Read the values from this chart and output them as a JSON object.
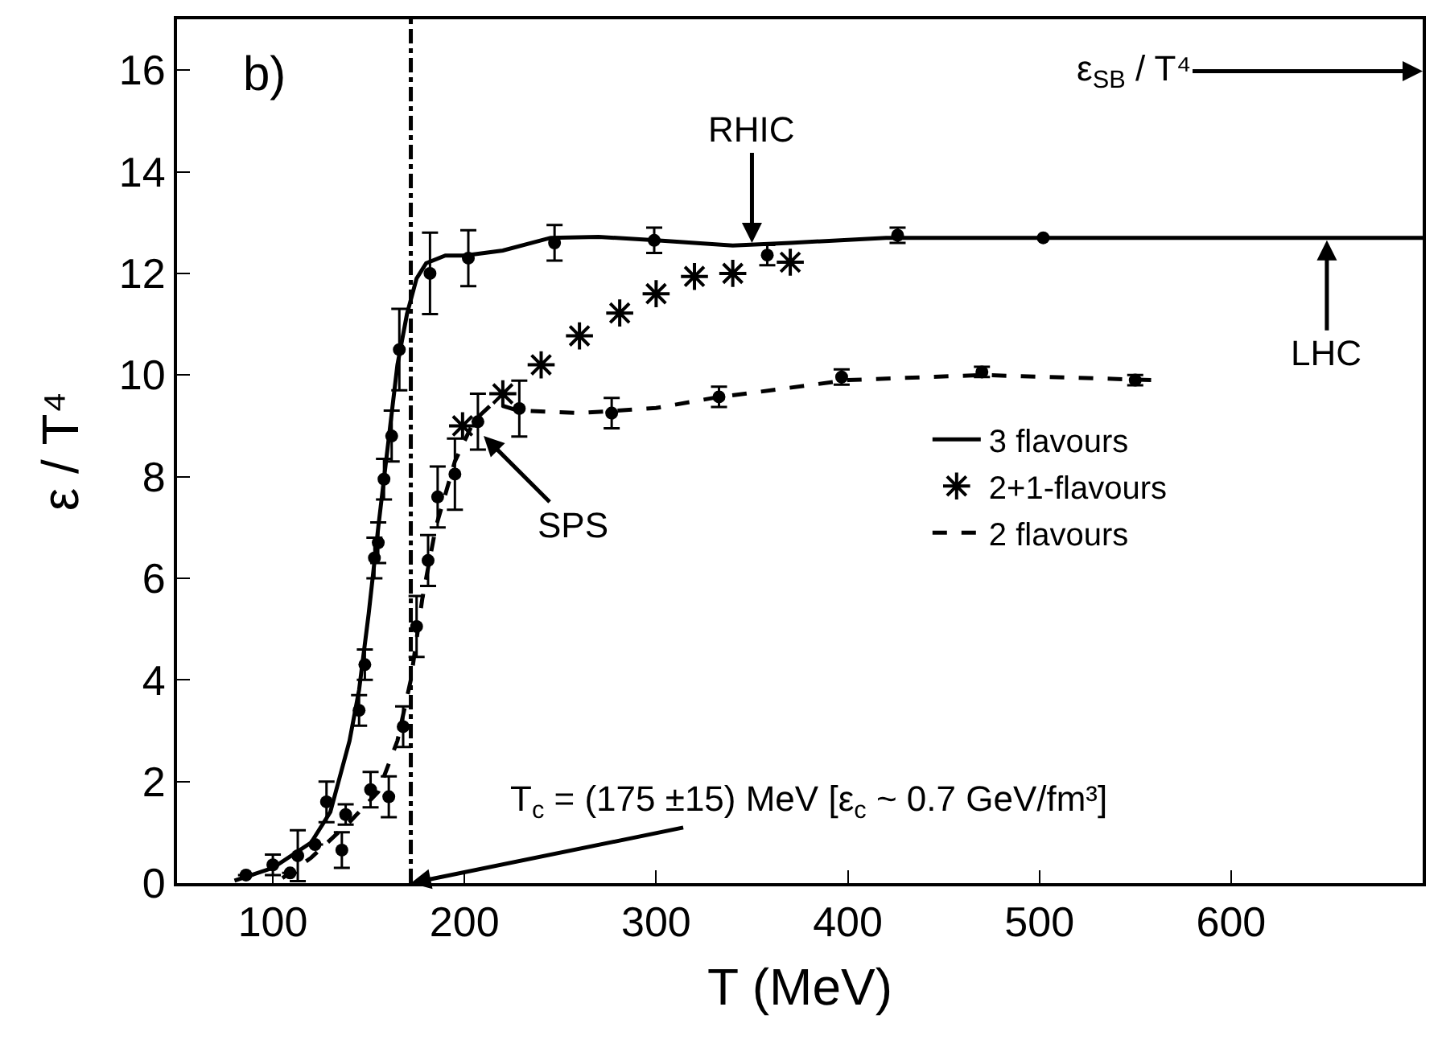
{
  "chart_data": {
    "type": "scatter",
    "xlabel": "T (MeV)",
    "ylabel": "ε / T⁴",
    "xlim": [
      50,
      700
    ],
    "xticks": [
      100,
      200,
      300,
      400,
      500,
      600
    ],
    "ylim": [
      0,
      17
    ],
    "yticks": [
      0,
      2,
      4,
      6,
      8,
      10,
      12,
      14,
      16
    ],
    "legend": "right",
    "series": [
      {
        "marker": "circle",
        "color": "#000000",
        "x": [
          86,
          100,
          113,
          128,
          138,
          145,
          148,
          153,
          155,
          158,
          162,
          166,
          182,
          202,
          247,
          299,
          358,
          426,
          502
        ],
        "values": [
          0.16,
          0.36,
          0.54,
          1.6,
          1.35,
          3.4,
          4.3,
          6.4,
          6.7,
          7.95,
          8.8,
          10.5,
          12.0,
          12.3,
          12.6,
          12.65,
          12.36,
          12.75,
          12.7
        ],
        "errors": [
          null,
          0.2,
          0.5,
          0.4,
          0.2,
          0.3,
          0.3,
          0.4,
          0.4,
          0.4,
          0.5,
          0.8,
          0.8,
          0.55,
          0.35,
          0.25,
          0.2,
          0.15,
          null
        ]
      },
      {
        "marker": "circle",
        "color": "#000000",
        "x": [
          109,
          122,
          136,
          151,
          160.5,
          168,
          175,
          181,
          186,
          195,
          207,
          228.6,
          276.8,
          332.8,
          396.8,
          470,
          550
        ],
        "values": [
          0.2,
          0.76,
          0.65,
          1.84,
          1.7,
          3.08,
          5.05,
          6.35,
          7.6,
          8.05,
          9.08,
          9.34,
          9.25,
          9.57,
          9.96,
          10.06,
          9.9
        ],
        "errors": [
          null,
          null,
          0.35,
          0.35,
          0.4,
          0.4,
          0.6,
          0.5,
          0.6,
          0.7,
          0.55,
          0.55,
          0.3,
          0.2,
          0.15,
          0.1,
          0.1
        ]
      },
      {
        "type": "line",
        "name": "3 flavours",
        "color": "#000000",
        "line_style": "solid",
        "x": [
          80,
          100,
          120,
          130,
          140,
          145,
          150,
          155,
          160,
          165,
          170,
          175,
          180,
          190,
          200,
          220,
          245,
          270,
          300,
          340,
          370,
          420,
          500,
          600,
          700
        ],
        "values": [
          0.05,
          0.3,
          0.8,
          1.4,
          2.8,
          3.8,
          5.3,
          7.0,
          8.6,
          10.2,
          11.2,
          11.9,
          12.2,
          12.35,
          12.35,
          12.45,
          12.7,
          12.72,
          12.65,
          12.55,
          12.6,
          12.7,
          12.7,
          12.7,
          12.7
        ]
      },
      {
        "name": "2+1-flavours",
        "marker": "cross",
        "color": "#000000",
        "x": [
          199,
          220,
          240,
          260,
          281,
          300,
          320,
          340,
          370
        ],
        "values": [
          9.0,
          9.63,
          10.2,
          10.77,
          11.22,
          11.6,
          11.94,
          12.0,
          12.22
        ]
      },
      {
        "type": "line",
        "name": "2 flavours",
        "color": "#000000",
        "line_style": "dashed",
        "x": [
          105,
          120,
          140,
          155,
          165,
          172,
          178,
          185,
          195,
          205,
          215,
          228,
          260,
          300,
          330,
          400,
          470,
          560
        ],
        "values": [
          0.1,
          0.5,
          1.2,
          1.8,
          2.8,
          4.0,
          5.6,
          7.0,
          8.3,
          9.1,
          9.45,
          9.3,
          9.25,
          9.35,
          9.55,
          9.9,
          10.0,
          9.9
        ]
      }
    ],
    "ref_lines": [
      {
        "axis": "x",
        "value": 172,
        "color": "#000000",
        "line_style": "dashed"
      }
    ],
    "annotations": [
      "b)",
      {
        "text": "RHIC",
        "x": 350,
        "y": 12.6
      },
      {
        "text": "LHC",
        "x": 650,
        "y": 12.65
      },
      {
        "text": "SPS",
        "x": 210,
        "y": 8.8
      },
      {
        "text": "T$_{c}$ = (175 ±15) MeV [ε$_{c}$ ~ 0.7 GeV/fm³]",
        "x": 172,
        "y": 0
      },
      "ε$_{SB}$ / T⁴"
    ]
  }
}
